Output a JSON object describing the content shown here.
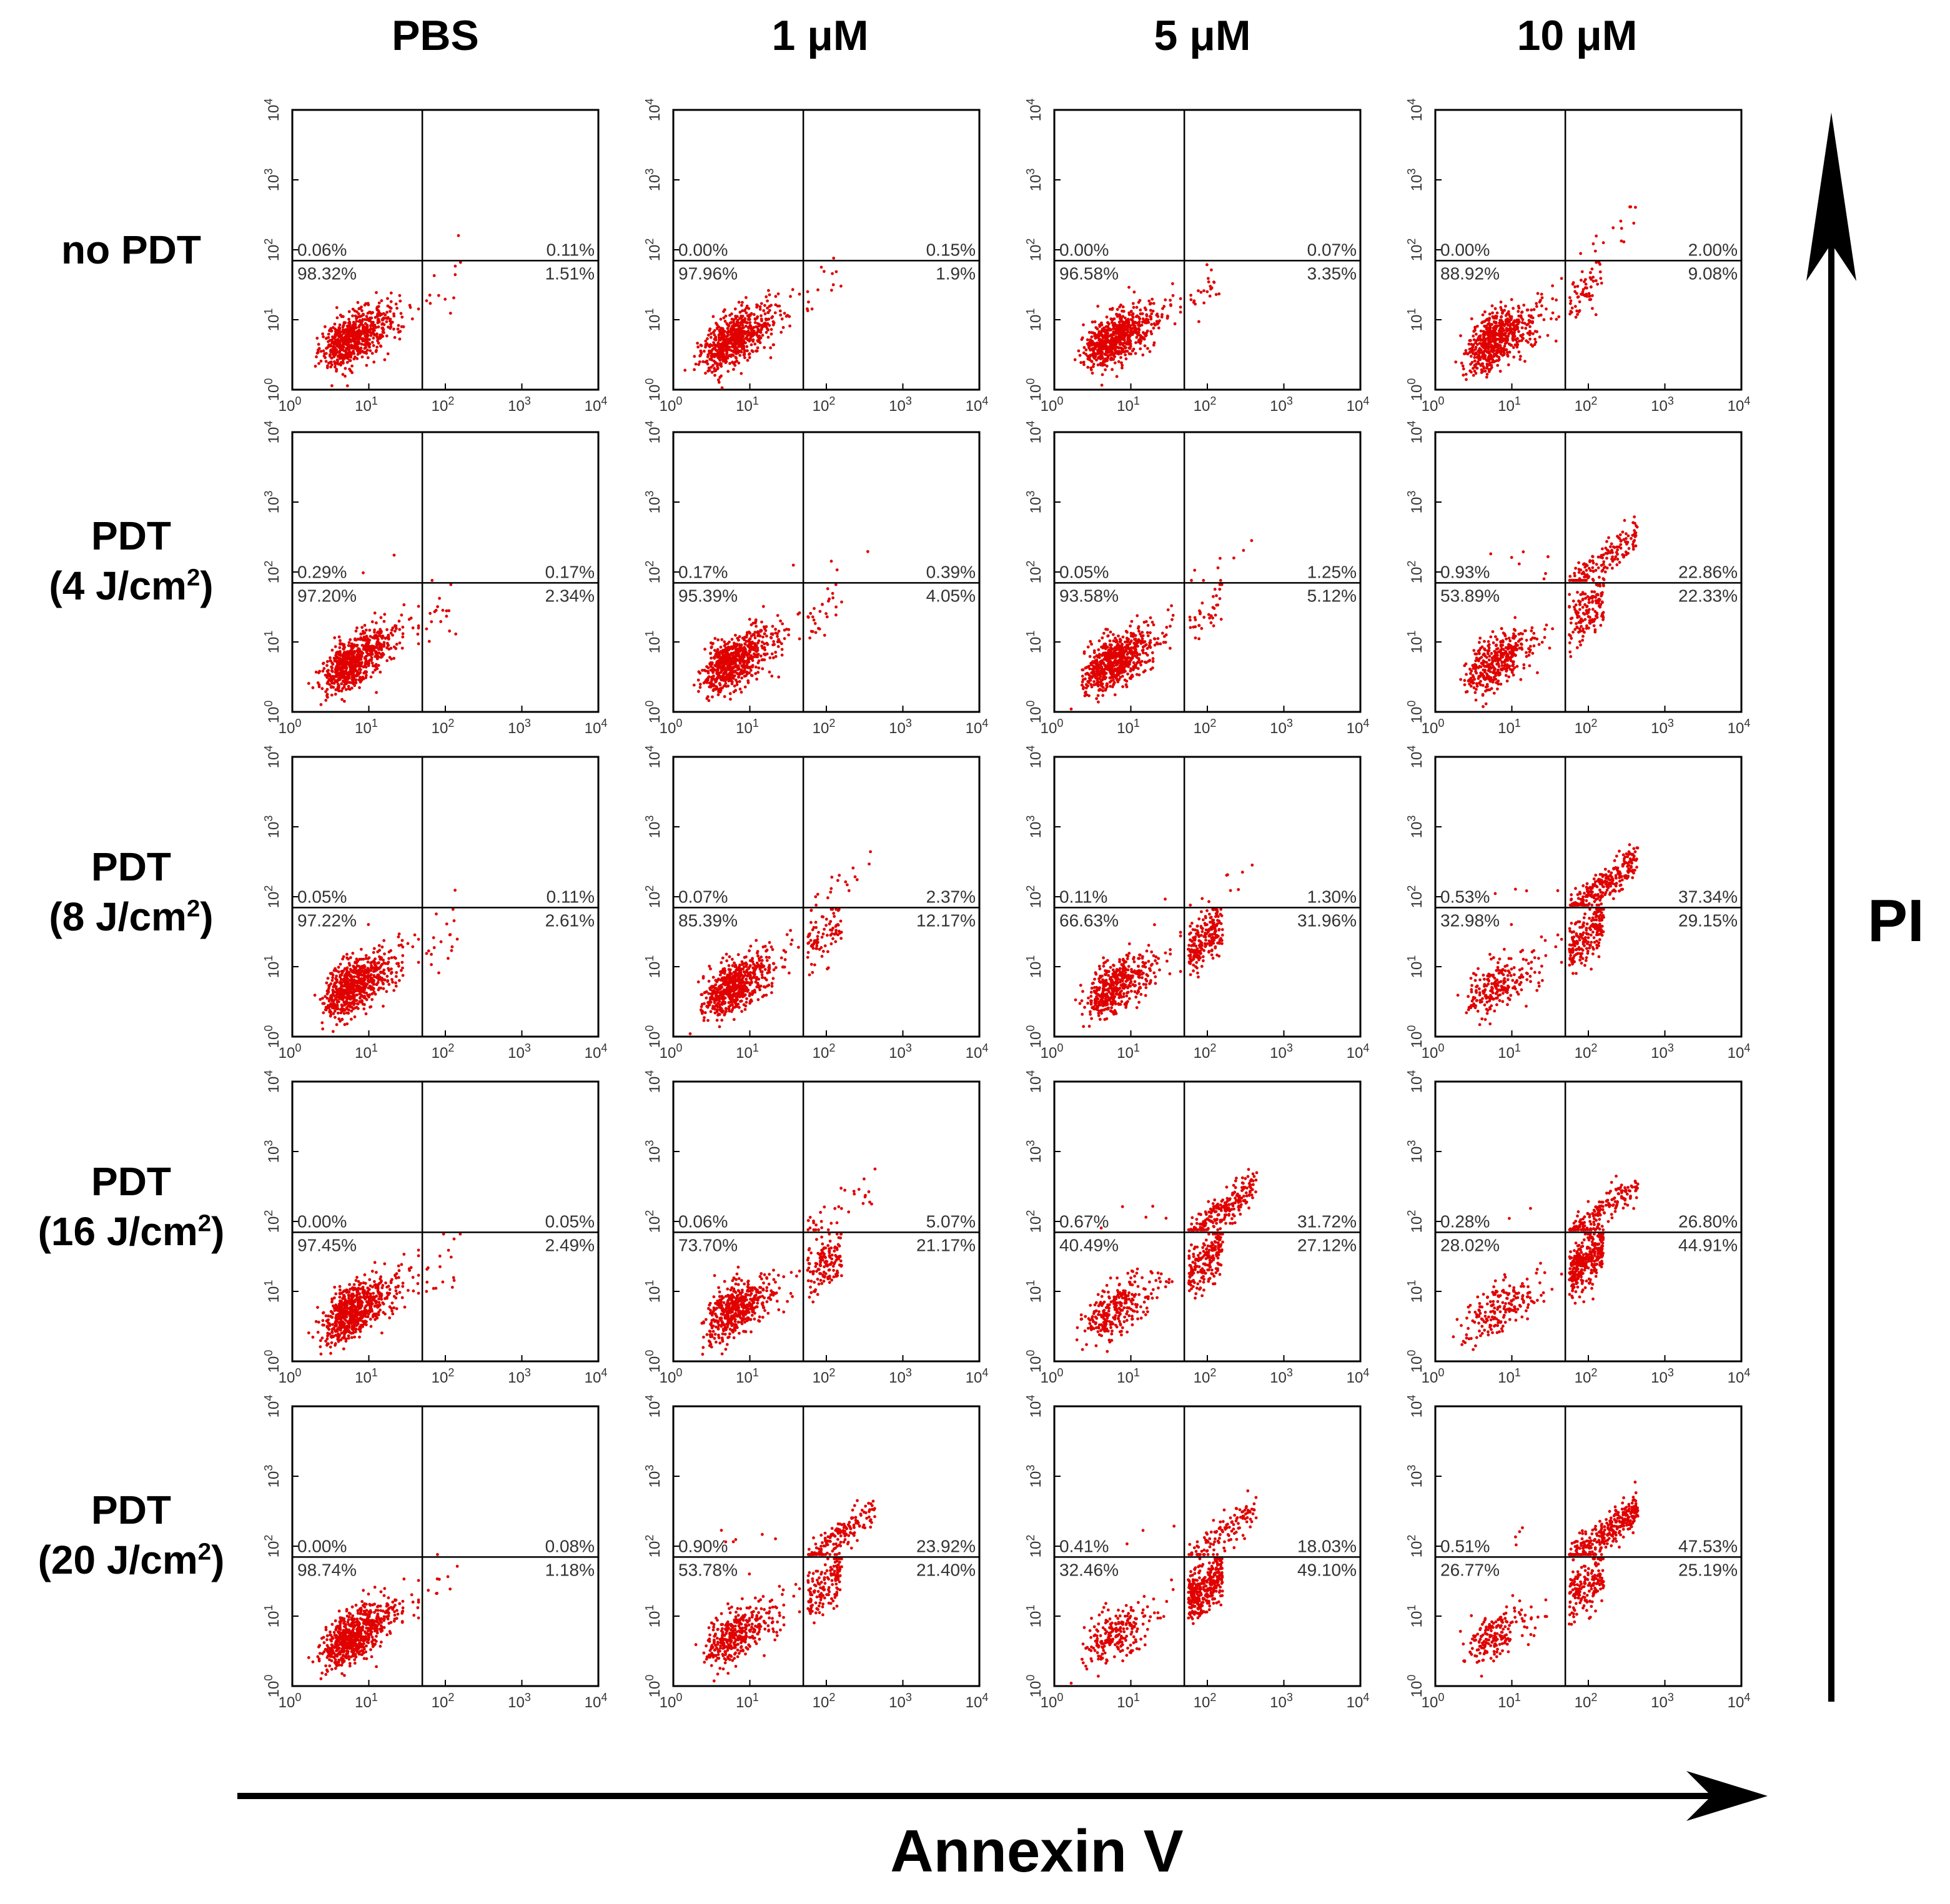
{
  "columns": [
    "PBS",
    "1 μM",
    "5 μM",
    "10 μM"
  ],
  "rows": [
    {
      "line1": "no PDT",
      "line2": "",
      "sup": ""
    },
    {
      "line1": "PDT",
      "line2": "(4 J/cm",
      "sup": "2"
    },
    {
      "line1": "PDT",
      "line2": "(8 J/cm",
      "sup": "2"
    },
    {
      "line1": "PDT",
      "line2": "(16 J/cm",
      "sup": "2"
    },
    {
      "line1": "PDT",
      "line2": "(20 J/cm",
      "sup": "2"
    }
  ],
  "x_axis_title": "Annexin V",
  "y_axis_title": "PI",
  "colors": {
    "points": "#e00000",
    "axes": "#000000",
    "labels": "#333333"
  },
  "chart_data": {
    "type": "scatter",
    "title": "",
    "xlabel": "Annexin V",
    "ylabel": "PI",
    "xscale": "log",
    "yscale": "log",
    "xlim": [
      1,
      10000
    ],
    "ylim": [
      1,
      10000
    ],
    "tick_labels": [
      "10^0",
      "10^1",
      "10^2",
      "10^3",
      "10^4"
    ],
    "gate_x": 50,
    "gate_y": 70,
    "quadrant_order": [
      "upper-left",
      "upper-right",
      "lower-left",
      "lower-right"
    ],
    "panels": [
      [
        {
          "quadrants": [
            "0.06%",
            "0.11%",
            "98.32%",
            "1.51%"
          ]
        },
        {
          "quadrants": [
            "0.00%",
            "0.15%",
            "97.96%",
            "1.9%"
          ]
        },
        {
          "quadrants": [
            "0.00%",
            "0.07%",
            "96.58%",
            "3.35%"
          ]
        },
        {
          "quadrants": [
            "0.00%",
            "2.00%",
            "88.92%",
            "9.08%"
          ]
        }
      ],
      [
        {
          "quadrants": [
            "0.29%",
            "0.17%",
            "97.20%",
            "2.34%"
          ]
        },
        {
          "quadrants": [
            "0.17%",
            "0.39%",
            "95.39%",
            "4.05%"
          ]
        },
        {
          "quadrants": [
            "0.05%",
            "1.25%",
            "93.58%",
            "5.12%"
          ]
        },
        {
          "quadrants": [
            "0.93%",
            "22.86%",
            "53.89%",
            "22.33%"
          ]
        }
      ],
      [
        {
          "quadrants": [
            "0.05%",
            "0.11%",
            "97.22%",
            "2.61%"
          ]
        },
        {
          "quadrants": [
            "0.07%",
            "2.37%",
            "85.39%",
            "12.17%"
          ]
        },
        {
          "quadrants": [
            "0.11%",
            "1.30%",
            "66.63%",
            "31.96%"
          ]
        },
        {
          "quadrants": [
            "0.53%",
            "37.34%",
            "32.98%",
            "29.15%"
          ]
        }
      ],
      [
        {
          "quadrants": [
            "0.00%",
            "0.05%",
            "97.45%",
            "2.49%"
          ]
        },
        {
          "quadrants": [
            "0.06%",
            "5.07%",
            "73.70%",
            "21.17%"
          ]
        },
        {
          "quadrants": [
            "0.67%",
            "31.72%",
            "40.49%",
            "27.12%"
          ]
        },
        {
          "quadrants": [
            "0.28%",
            "26.80%",
            "28.02%",
            "44.91%"
          ]
        }
      ],
      [
        {
          "quadrants": [
            "0.00%",
            "0.08%",
            "98.74%",
            "1.18%"
          ]
        },
        {
          "quadrants": [
            "0.90%",
            "23.92%",
            "53.78%",
            "21.40%"
          ]
        },
        {
          "quadrants": [
            "0.41%",
            "18.03%",
            "32.46%",
            "49.10%"
          ]
        },
        {
          "quadrants": [
            "0.51%",
            "47.53%",
            "26.77%",
            "25.19%"
          ]
        }
      ]
    ]
  }
}
